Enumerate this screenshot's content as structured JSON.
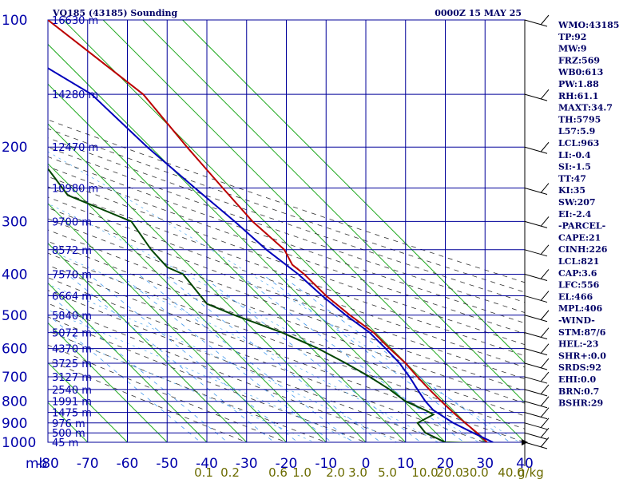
{
  "header": {
    "station": "VQ185 (43185) Sounding",
    "time": "0000Z 15 MAY 25"
  },
  "chart_data": {
    "type": "line",
    "title": "VQ185 (43185) Sounding",
    "pressure_ticks": [
      "100",
      "200",
      "300",
      "400",
      "500",
      "600",
      "700",
      "800",
      "900",
      "1000"
    ],
    "pressure_unit": "mb",
    "temp_ticks": [
      "-80",
      "-70",
      "-60",
      "-50",
      "-40",
      "-30",
      "-20",
      "-10",
      "0",
      "10",
      "20",
      "30",
      "40"
    ],
    "mixing_ratio_labels": [
      "0.1",
      "0.2",
      "0.6",
      "1.0",
      "2.0",
      "3.0",
      "5.0",
      "10.0",
      "20.0",
      "30.0",
      "40.0"
    ],
    "mixing_ratio_unit": "g/kg",
    "height_labels": [
      {
        "p": 100,
        "t": "16630 m"
      },
      {
        "p": 150,
        "t": "14280 m"
      },
      {
        "p": 200,
        "t": "12470 m"
      },
      {
        "p": 250,
        "t": "10980 m"
      },
      {
        "p": 300,
        "t": "9700 m"
      },
      {
        "p": 350,
        "t": "8572 m"
      },
      {
        "p": 400,
        "t": "7570 m"
      },
      {
        "p": 450,
        "t": "6664 m"
      },
      {
        "p": 500,
        "t": "5840 m"
      },
      {
        "p": 550,
        "t": "5072 m"
      },
      {
        "p": 600,
        "t": "4370 m"
      },
      {
        "p": 650,
        "t": "3725 m"
      },
      {
        "p": 700,
        "t": "3127 m"
      },
      {
        "p": 750,
        "t": "2540 m"
      },
      {
        "p": 800,
        "t": "1991 m"
      },
      {
        "p": 850,
        "t": "1475 m"
      },
      {
        "p": 900,
        "t": "976 m"
      },
      {
        "p": 950,
        "t": "500 m"
      },
      {
        "p": 1000,
        "t": "45 m"
      }
    ],
    "series": [
      {
        "color": "#bb0000",
        "points": [
          {
            "p": 100,
            "x": -80
          },
          {
            "p": 150,
            "x": -56
          },
          {
            "p": 200,
            "x": -45
          },
          {
            "p": 250,
            "x": -36
          },
          {
            "p": 300,
            "x": -28.5
          },
          {
            "p": 350,
            "x": -20.5
          },
          {
            "p": 380,
            "x": -18.5
          },
          {
            "p": 400,
            "x": -15.5
          },
          {
            "p": 450,
            "x": -10
          },
          {
            "p": 500,
            "x": -4
          },
          {
            "p": 550,
            "x": 2
          },
          {
            "p": 600,
            "x": 6
          },
          {
            "p": 650,
            "x": 10
          },
          {
            "p": 700,
            "x": 13
          },
          {
            "p": 750,
            "x": 16
          },
          {
            "p": 800,
            "x": 19
          },
          {
            "p": 850,
            "x": 22
          },
          {
            "p": 900,
            "x": 25
          },
          {
            "p": 950,
            "x": 28
          },
          {
            "p": 1000,
            "x": 30.5
          }
        ]
      },
      {
        "color": "#0000bb",
        "points": [
          {
            "p": 130,
            "x": -80
          },
          {
            "p": 150,
            "x": -69
          },
          {
            "p": 200,
            "x": -55
          },
          {
            "p": 250,
            "x": -43
          },
          {
            "p": 300,
            "x": -33
          },
          {
            "p": 350,
            "x": -25
          },
          {
            "p": 400,
            "x": -17
          },
          {
            "p": 450,
            "x": -11
          },
          {
            "p": 500,
            "x": -5
          },
          {
            "p": 550,
            "x": 1
          },
          {
            "p": 600,
            "x": 5
          },
          {
            "p": 650,
            "x": 8.5
          },
          {
            "p": 700,
            "x": 11
          },
          {
            "p": 750,
            "x": 13
          },
          {
            "p": 800,
            "x": 15
          },
          {
            "p": 840,
            "x": 17
          },
          {
            "p": 900,
            "x": 22
          },
          {
            "p": 950,
            "x": 27
          },
          {
            "p": 1000,
            "x": 32
          }
        ]
      },
      {
        "color": "#004400",
        "points": [
          {
            "p": 225,
            "x": -80
          },
          {
            "p": 260,
            "x": -75
          },
          {
            "p": 300,
            "x": -59
          },
          {
            "p": 350,
            "x": -54
          },
          {
            "p": 385,
            "x": -50
          },
          {
            "p": 400,
            "x": -46
          },
          {
            "p": 470,
            "x": -40
          },
          {
            "p": 500,
            "x": -33
          },
          {
            "p": 550,
            "x": -21
          },
          {
            "p": 600,
            "x": -12
          },
          {
            "p": 650,
            "x": -5
          },
          {
            "p": 700,
            "x": 1
          },
          {
            "p": 750,
            "x": 6
          },
          {
            "p": 800,
            "x": 10
          },
          {
            "p": 840,
            "x": 15
          },
          {
            "p": 860,
            "x": 17
          },
          {
            "p": 900,
            "x": 13
          },
          {
            "p": 950,
            "x": 15
          },
          {
            "p": 1000,
            "x": 20
          },
          {
            "p": 1005,
            "x": 28
          }
        ]
      }
    ]
  },
  "indices": [
    "WMO:43185",
    "TP:92",
    "MW:9",
    "FRZ:569",
    "WB0:613",
    "PW:1.88",
    "RH:61.1",
    "MAXT:34.7",
    "TH:5795",
    "L57:5.9",
    "LCL:963",
    "LI:-0.4",
    "SI:-1.5",
    "TT:47",
    "KI:35",
    "SW:207",
    "EI:-2.4",
    "-PARCEL-",
    "CAPE:21",
    "CINH:226",
    "LCL:821",
    "CAP:3.6",
    "LFC:556",
    "EL:466",
    "MPL:406",
    "-WIND-",
    "STM:87/6",
    "HEL:-23",
    "SHR+:0.0",
    "SRDS:92",
    "EHI:0.0",
    "BRN:0.7",
    "BSHR:29"
  ]
}
